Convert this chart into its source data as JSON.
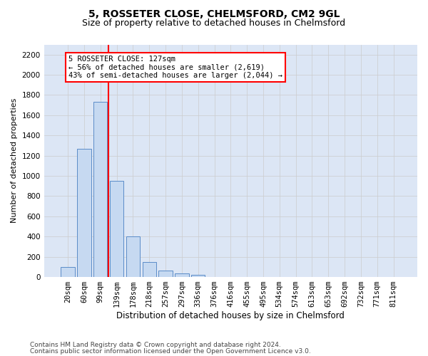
{
  "title1": "5, ROSSETER CLOSE, CHELMSFORD, CM2 9GL",
  "title2": "Size of property relative to detached houses in Chelmsford",
  "xlabel": "Distribution of detached houses by size in Chelmsford",
  "ylabel": "Number of detached properties",
  "categories": [
    "20sqm",
    "60sqm",
    "99sqm",
    "139sqm",
    "178sqm",
    "218sqm",
    "257sqm",
    "297sqm",
    "336sqm",
    "376sqm",
    "416sqm",
    "455sqm",
    "495sqm",
    "534sqm",
    "574sqm",
    "613sqm",
    "653sqm",
    "692sqm",
    "732sqm",
    "771sqm",
    "811sqm"
  ],
  "values": [
    100,
    1270,
    1730,
    950,
    400,
    150,
    65,
    35,
    20,
    0,
    0,
    0,
    0,
    0,
    0,
    0,
    0,
    0,
    0,
    0,
    0
  ],
  "bar_color": "#c6d9f1",
  "bar_edge_color": "#5b8cc8",
  "vline_x": 2.5,
  "vline_color": "red",
  "annotation_line1": "5 ROSSETER CLOSE: 127sqm",
  "annotation_line2": "← 56% of detached houses are smaller (2,619)",
  "annotation_line3": "43% of semi-detached houses are larger (2,044) →",
  "annotation_box_color": "white",
  "annotation_box_edge_color": "red",
  "ylim": [
    0,
    2300
  ],
  "yticks": [
    0,
    200,
    400,
    600,
    800,
    1000,
    1200,
    1400,
    1600,
    1800,
    2000,
    2200
  ],
  "footnote1": "Contains HM Land Registry data © Crown copyright and database right 2024.",
  "footnote2": "Contains public sector information licensed under the Open Government Licence v3.0.",
  "grid_color": "#cccccc",
  "bg_color": "#dce6f5",
  "title1_fontsize": 10,
  "title2_fontsize": 9,
  "xlabel_fontsize": 8.5,
  "ylabel_fontsize": 8,
  "annotation_fontsize": 7.5,
  "footnote_fontsize": 6.5,
  "tick_fontsize": 7.5
}
